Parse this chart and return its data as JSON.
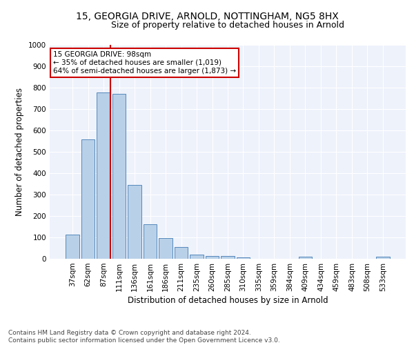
{
  "title1": "15, GEORGIA DRIVE, ARNOLD, NOTTINGHAM, NG5 8HX",
  "title2": "Size of property relative to detached houses in Arnold",
  "xlabel": "Distribution of detached houses by size in Arnold",
  "ylabel": "Number of detached properties",
  "categories": [
    "37sqm",
    "62sqm",
    "87sqm",
    "111sqm",
    "136sqm",
    "161sqm",
    "186sqm",
    "211sqm",
    "235sqm",
    "260sqm",
    "285sqm",
    "310sqm",
    "335sqm",
    "359sqm",
    "384sqm",
    "409sqm",
    "434sqm",
    "459sqm",
    "483sqm",
    "508sqm",
    "533sqm"
  ],
  "values": [
    113,
    557,
    779,
    770,
    345,
    161,
    97,
    55,
    20,
    14,
    13,
    8,
    0,
    0,
    0,
    10,
    0,
    0,
    0,
    0,
    10
  ],
  "bar_color": "#b8d0e8",
  "bar_edge_color": "#5588bb",
  "vline_color": "#cc0000",
  "annotation_text": "15 GEORGIA DRIVE: 98sqm\n← 35% of detached houses are smaller (1,019)\n64% of semi-detached houses are larger (1,873) →",
  "annotation_box_color": "#ffffff",
  "annotation_box_edge_color": "#cc0000",
  "ylim": [
    0,
    1000
  ],
  "yticks": [
    0,
    100,
    200,
    300,
    400,
    500,
    600,
    700,
    800,
    900,
    1000
  ],
  "bg_color": "#eef2fb",
  "footer_text": "Contains HM Land Registry data © Crown copyright and database right 2024.\nContains public sector information licensed under the Open Government Licence v3.0.",
  "title_fontsize": 10,
  "subtitle_fontsize": 9,
  "axis_label_fontsize": 8.5,
  "tick_fontsize": 7.5,
  "footer_fontsize": 6.5
}
